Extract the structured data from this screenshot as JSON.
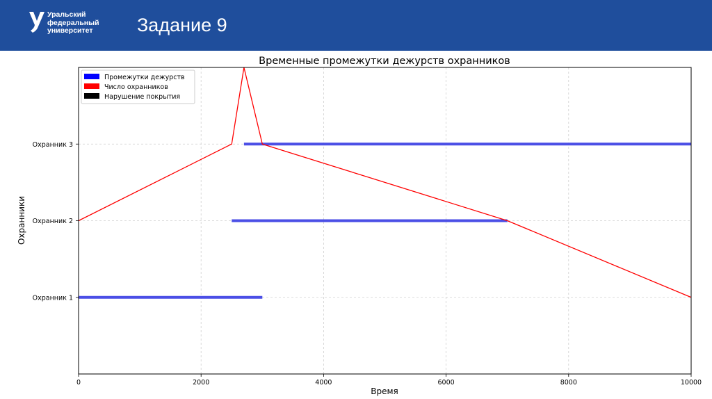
{
  "header": {
    "logo_lines": [
      "Уральский",
      "федеральный",
      "университет"
    ],
    "slide_title": "Задание 9",
    "background": "#1f4e9c"
  },
  "chart_data": {
    "type": "line",
    "title": "Временные промежутки дежурств охранников",
    "xlabel": "Время",
    "ylabel": "Охранники",
    "xlim": [
      0,
      10000
    ],
    "ylim": [
      0,
      4
    ],
    "xticks": [
      0,
      2000,
      4000,
      6000,
      8000,
      10000
    ],
    "yticks": [
      1,
      2,
      3
    ],
    "yticklabels": [
      "Охранник 1",
      "Охранник 2",
      "Охранник 3"
    ],
    "grid": true,
    "legend_position": "top-left",
    "legend": [
      {
        "label": "Промежутки дежурств",
        "color": "#0000ff"
      },
      {
        "label": "Число охранников",
        "color": "#ff0000"
      },
      {
        "label": "Нарушение покрытия",
        "color": "#000000"
      }
    ],
    "shifts": [
      {
        "guard": 1,
        "start": 0,
        "end": 3000
      },
      {
        "guard": 2,
        "start": 2500,
        "end": 7000
      },
      {
        "guard": 3,
        "start": 2700,
        "end": 10000
      }
    ],
    "guard_count": {
      "x": [
        0,
        2500,
        2700,
        3000,
        7000,
        10000
      ],
      "y": [
        2,
        3,
        4,
        3,
        2,
        1
      ]
    },
    "colors": {
      "shift": "#4b4fe6",
      "count": "#ff0000",
      "violation": "#000000"
    }
  }
}
